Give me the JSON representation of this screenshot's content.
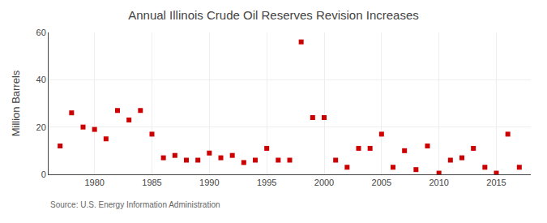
{
  "chart_data": {
    "type": "scatter",
    "title": "Annual Illinois Crude Oil Reserves Revision Increases",
    "ylabel": "Million Barrels",
    "annotation": "Source: U.S. Energy Information Administration",
    "x": [
      1977,
      1978,
      1979,
      1980,
      1981,
      1982,
      1983,
      1984,
      1985,
      1986,
      1987,
      1988,
      1989,
      1990,
      1991,
      1992,
      1993,
      1994,
      1995,
      1996,
      1997,
      1998,
      1999,
      2000,
      2001,
      2002,
      2003,
      2004,
      2005,
      2006,
      2007,
      2008,
      2009,
      2010,
      2011,
      2012,
      2013,
      2014,
      2015,
      2016,
      2017
    ],
    "values": [
      12,
      26,
      20,
      19,
      15,
      27,
      23,
      27,
      17,
      7,
      8,
      6,
      6,
      9,
      7,
      8,
      5,
      6,
      11,
      6,
      6,
      56,
      24,
      24,
      6,
      3,
      11,
      11,
      17,
      3,
      10,
      2,
      12,
      0.5,
      6,
      7,
      11,
      3,
      0.5,
      17,
      3
    ],
    "color": "#cc0000",
    "marker": "square",
    "xlim": [
      1976,
      2018
    ],
    "ylim": [
      0,
      60
    ],
    "xticks": [
      1980,
      1985,
      1990,
      1995,
      2000,
      2005,
      2010,
      2015
    ],
    "yticks": [
      0,
      20,
      40,
      60
    ],
    "grid": true
  }
}
